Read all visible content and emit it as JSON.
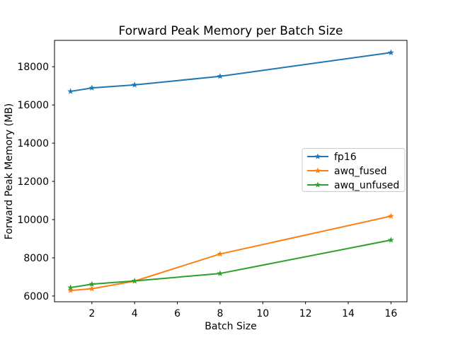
{
  "chart_data": {
    "type": "line",
    "title": "Forward Peak Memory per Batch Size",
    "xlabel": "Batch Size",
    "ylabel": "Forward Peak Memory (MB)",
    "x": [
      1,
      2,
      4,
      8,
      16
    ],
    "series": [
      {
        "name": "fp16",
        "color": "#1f77b4",
        "marker": "star",
        "values": [
          16710,
          16890,
          17050,
          17500,
          18740
        ]
      },
      {
        "name": "awq_fused",
        "color": "#ff7f0e",
        "marker": "star",
        "values": [
          6290,
          6380,
          6780,
          8200,
          10180
        ]
      },
      {
        "name": "awq_unfused",
        "color": "#2ca02c",
        "marker": "star",
        "values": [
          6440,
          6620,
          6790,
          7180,
          8930
        ]
      }
    ],
    "xticks": [
      2,
      4,
      6,
      8,
      10,
      12,
      14,
      16
    ],
    "yticks": [
      6000,
      8000,
      10000,
      12000,
      14000,
      16000,
      18000
    ],
    "xlim": [
      0.25,
      16.75
    ],
    "ylim": [
      5700,
      19380
    ],
    "grid": false,
    "legend_position": "center right",
    "legend_border_color": "#cccccc",
    "axis_color": "#000000",
    "background_color": "#ffffff"
  }
}
